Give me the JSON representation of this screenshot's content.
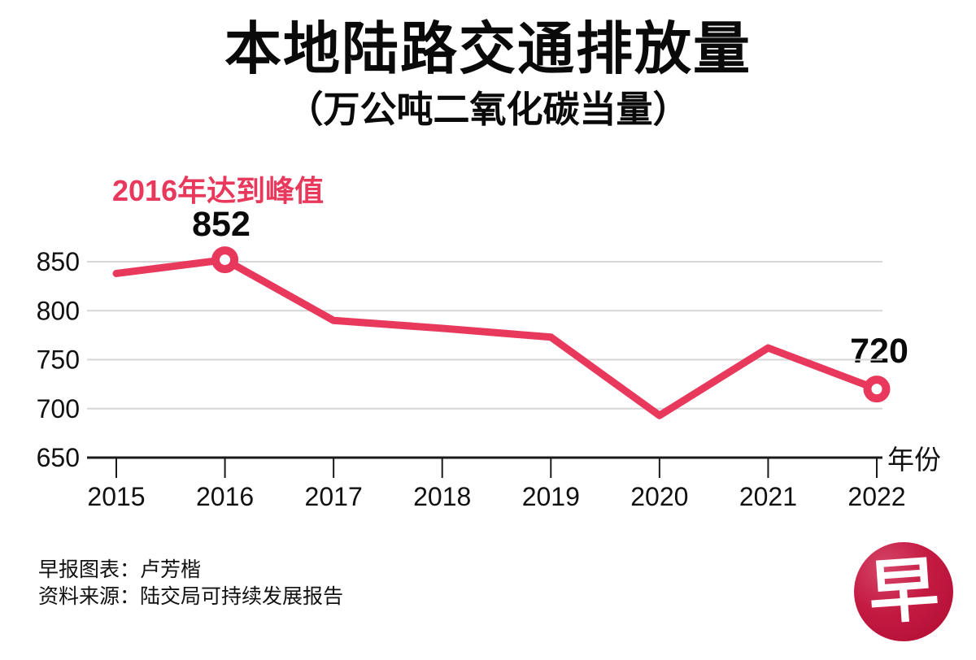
{
  "chart_data": {
    "type": "line",
    "title": "本地陆路交通排放量",
    "subtitle": "（万公吨二氧化碳当量）",
    "xlabel": "年份",
    "ylabel": "",
    "categories": [
      "2015",
      "2016",
      "2017",
      "2018",
      "2019",
      "2020",
      "2021",
      "2022"
    ],
    "values": [
      838,
      852,
      790,
      782,
      773,
      693,
      762,
      720
    ],
    "yticks": [
      650,
      700,
      750,
      800,
      850
    ],
    "ylim": [
      650,
      875
    ],
    "grid": true,
    "legend_position": "none",
    "markers": [
      {
        "category": "2016",
        "value_label": "852",
        "note": "2016年达到峰值"
      },
      {
        "category": "2022",
        "value_label": "720",
        "note": ""
      }
    ],
    "colors": {
      "line": "#e8395c",
      "axis": "#1a1a1a",
      "grid": "#d6d6d6",
      "text": "#111111",
      "annotation": "#e8395c"
    }
  },
  "footer": {
    "credit": "早报图表：卢芳楷",
    "source": "资料来源：陆交局可持续发展报告"
  },
  "logo": {
    "glyph": "早",
    "bg_dark": "#b00d34",
    "bg_light": "#d64568"
  }
}
